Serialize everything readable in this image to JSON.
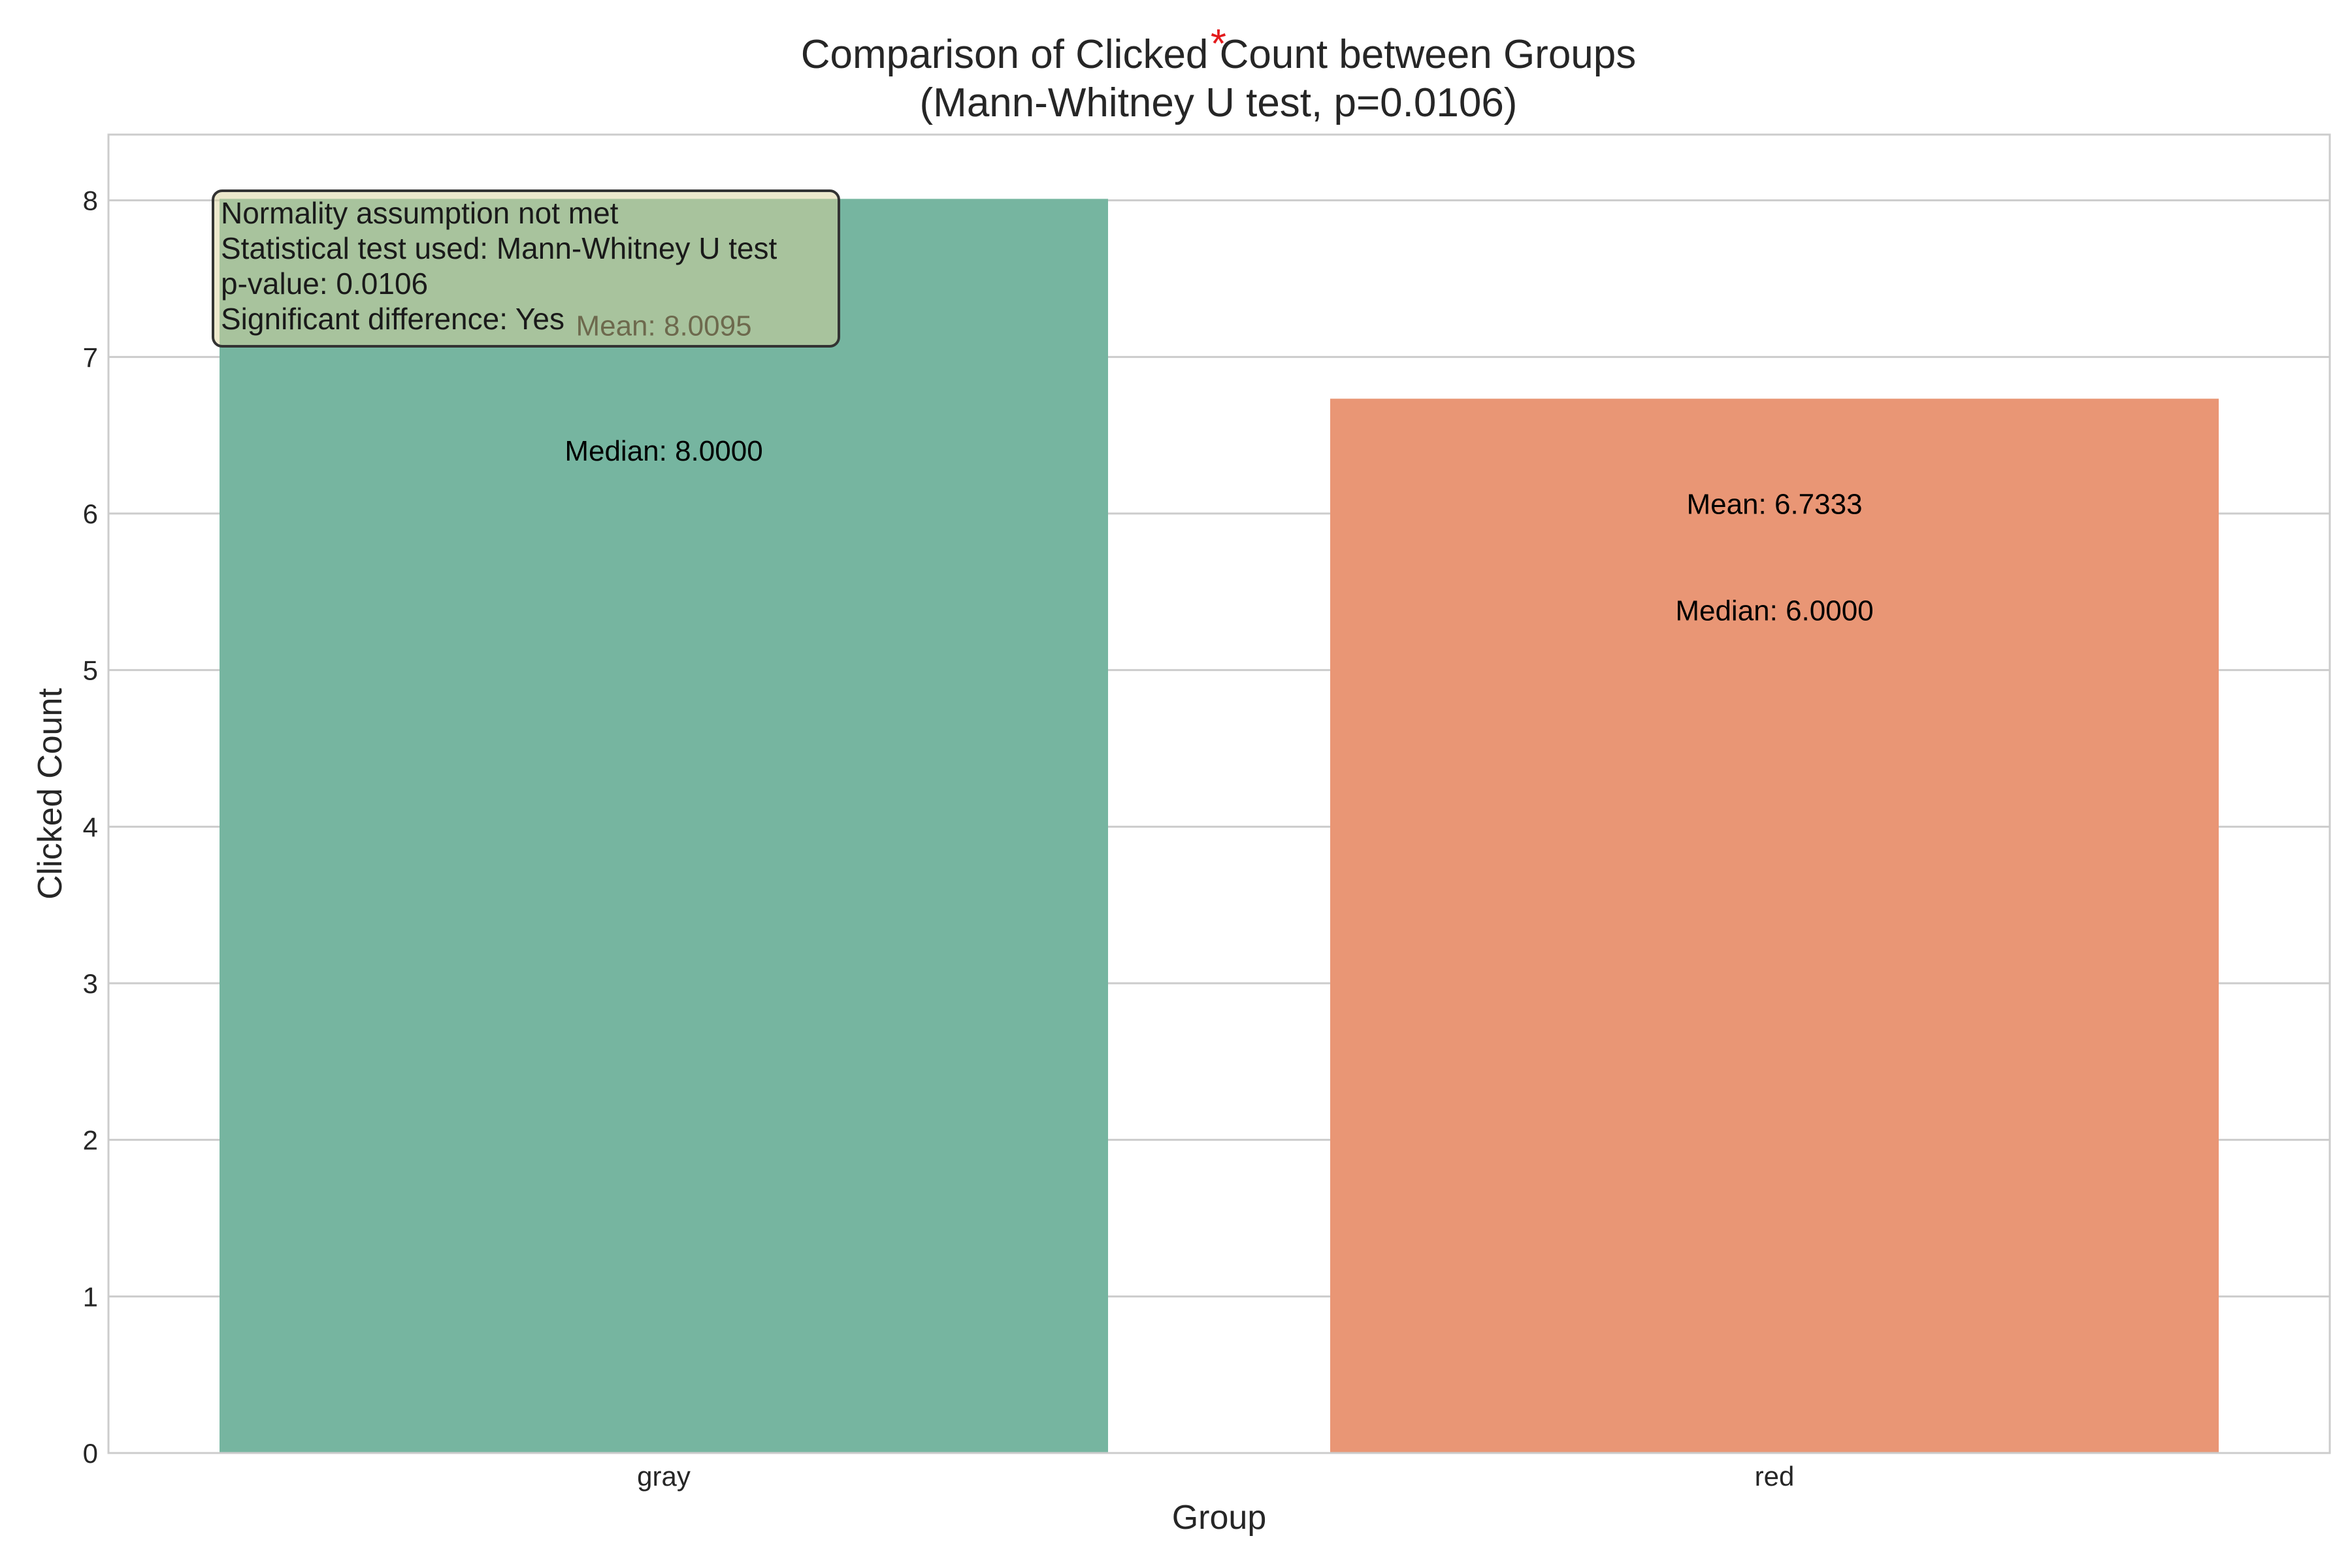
{
  "chart_data": {
    "type": "bar",
    "title": "Comparison of Clicked Count between Groups",
    "subtitle": "(Mann-Whitney U test, p=0.0106)",
    "significance_marker": "*",
    "xlabel": "Group",
    "ylabel": "Clicked Count",
    "categories": [
      "gray",
      "red"
    ],
    "values": [
      8.0095,
      6.7333
    ],
    "bar_colors": [
      "#76b5a0",
      "#e99675"
    ],
    "marker_color": "#e31a1c",
    "ylim": [
      0,
      8.42
    ],
    "y_ticks": [
      0,
      1,
      2,
      3,
      4,
      5,
      6,
      7,
      8
    ],
    "grid": true,
    "annotations": [
      {
        "category": "gray",
        "mean_label": "Mean: 8.0095",
        "median_label": "Median: 8.0000",
        "mean_at": 7.2,
        "median_at": 6.4
      },
      {
        "category": "red",
        "mean_label": "Mean: 6.7333",
        "median_label": "Median: 6.0000",
        "mean_at": 6.06,
        "median_at": 5.38
      }
    ],
    "stats_box": {
      "lines": [
        "Normality assumption not met",
        "Statistical test used: Mann-Whitney U test",
        "p-value: 0.0106",
        "Significant difference: Yes"
      ],
      "background": "#d9d29a"
    }
  }
}
